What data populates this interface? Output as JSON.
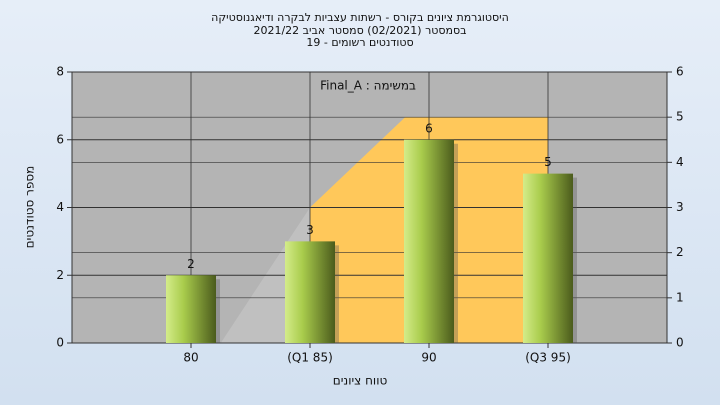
{
  "chart_data": {
    "type": "bar",
    "title": [
      "היסטוגרמת ציונים בקורס - רשתות עצביות לבקרה ודיאגנוסטיקה",
      "בסמסטר  (02/2021)  סמסטר אביב 2021/22",
      "סטודנטים רשומים - 19"
    ],
    "legend_text": "Final_A : במשימה",
    "x_label": "טווח ציונים",
    "y_label": "מספר סטודנטים",
    "categories": [
      "80",
      "(Q1 85)",
      "90",
      "(Q3 95)"
    ],
    "values": [
      2,
      3,
      6,
      5
    ],
    "value_labels": [
      "2",
      "3",
      "6",
      "5"
    ],
    "color": "#9cbf3c",
    "areas": [
      {
        "color": "#c0c0c0",
        "x": [
          1.25,
          2
        ],
        "values": [
          0,
          3
        ]
      },
      {
        "color": "#ffc85a",
        "x": [
          2,
          2.8,
          4
        ],
        "values": [
          3,
          5,
          5
        ]
      }
    ],
    "ylim": [
      0,
      8
    ],
    "yticks": [
      0,
      2,
      4,
      6,
      8
    ],
    "y2lim": [
      0,
      6
    ],
    "y2ticks": [
      0,
      1,
      2,
      3,
      4,
      5,
      6
    ],
    "grid": true
  }
}
